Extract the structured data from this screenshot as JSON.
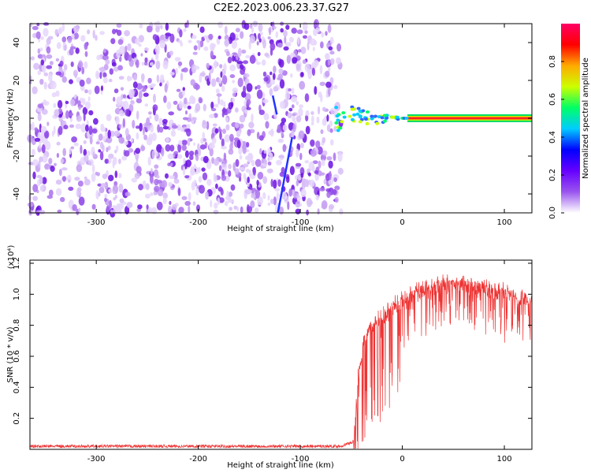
{
  "title": "C2E2.2023.006.23.37.G27",
  "chart_data": [
    {
      "type": "heatmap",
      "xlabel": "Height of straight line (km)",
      "ylabel": "Frequency (Hz)",
      "xlim": [
        -365,
        127
      ],
      "ylim": [
        -50,
        50
      ],
      "x_ticks": [
        -300,
        -200,
        -100,
        0,
        100
      ],
      "y_ticks": [
        -40,
        -20,
        0,
        20,
        40
      ],
      "noise_region_x": [
        -365,
        -60
      ],
      "signal_line": {
        "x_start": 5,
        "x_end": 127,
        "frequency": 0
      },
      "colorbar": {
        "label": "Normalized spectral amplitude",
        "ticks": [
          0.0,
          0.2,
          0.4,
          0.6,
          0.8
        ],
        "range": [
          0,
          1
        ],
        "colors": [
          "#ffffff",
          "#9955ee",
          "#6600ff",
          "#0000ff",
          "#00ccff",
          "#00ff66",
          "#ccff00",
          "#ffaa00",
          "#ff0000",
          "#ff0066"
        ]
      }
    },
    {
      "type": "line",
      "xlabel": "Height of straight line (km)",
      "ylabel": "SNR (10 * v/v)",
      "scale_label": "(x10⁴)",
      "xlim": [
        -365,
        127
      ],
      "ylim": [
        0.0,
        1.22
      ],
      "x_ticks": [
        -300,
        -200,
        -100,
        0,
        100
      ],
      "y_ticks": [
        0.2,
        0.4,
        0.6,
        0.8,
        1.0,
        1.2
      ],
      "series_color": "#ee3333",
      "profile": {
        "x": [
          -365,
          -100,
          -60,
          -48,
          -44,
          -42,
          -38,
          -30,
          -20,
          -10,
          0,
          10,
          20,
          40,
          60,
          80,
          100,
          120,
          127
        ],
        "y": [
          0.02,
          0.02,
          0.02,
          0.05,
          0.45,
          0.55,
          0.72,
          0.82,
          0.88,
          0.94,
          0.99,
          1.03,
          1.06,
          1.1,
          1.1,
          1.07,
          1.04,
          1.0,
          0.98
        ]
      }
    }
  ]
}
